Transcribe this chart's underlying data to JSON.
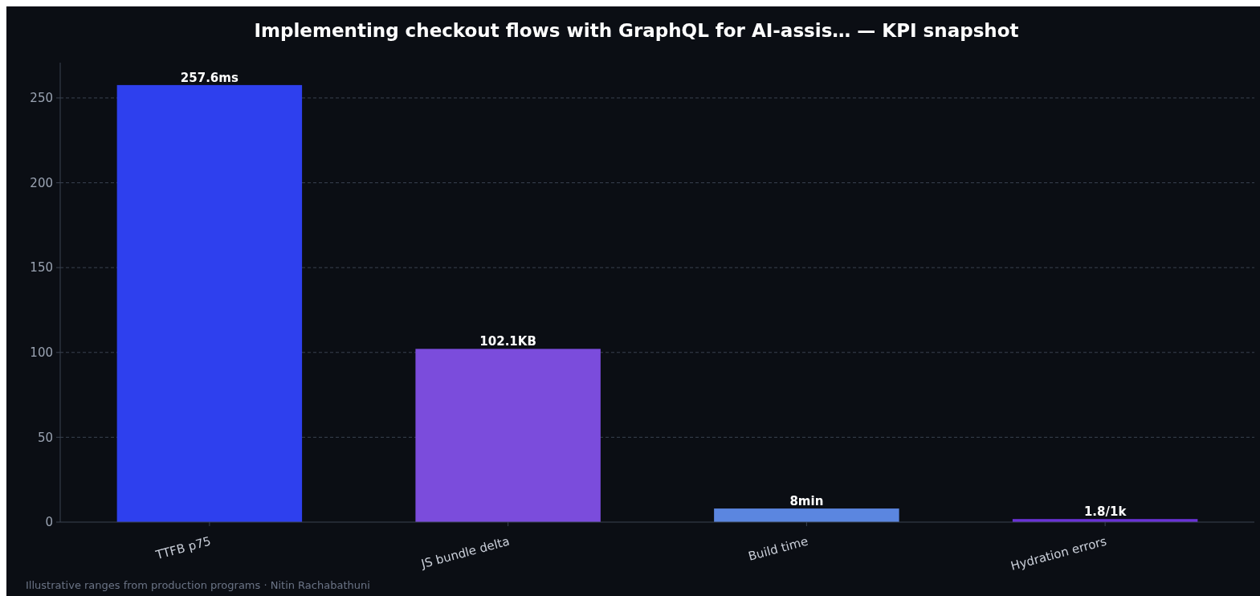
{
  "chart_data": {
    "type": "bar",
    "title": "Implementing checkout flows with GraphQL for AI-assis… — KPI snapshot",
    "categories": [
      "TTFB p75",
      "JS bundle delta",
      "Build time",
      "Hydration errors"
    ],
    "values": [
      257.6,
      102.1,
      8,
      1.8
    ],
    "colors": [
      "#2e40ee",
      "#7b4cdc",
      "#5b86e0",
      "#6a32d8"
    ],
    "value_labels": [
      "257.6ms",
      "102.1KB",
      "8min",
      "1.8/1k"
    ],
    "ylim": [
      0,
      270.8
    ],
    "yticks": [
      0,
      50,
      100,
      150,
      200,
      250
    ],
    "grid": "y",
    "annotations": [
      "Illustrative ranges from production programs · Nitin Rachabathuni"
    ]
  }
}
